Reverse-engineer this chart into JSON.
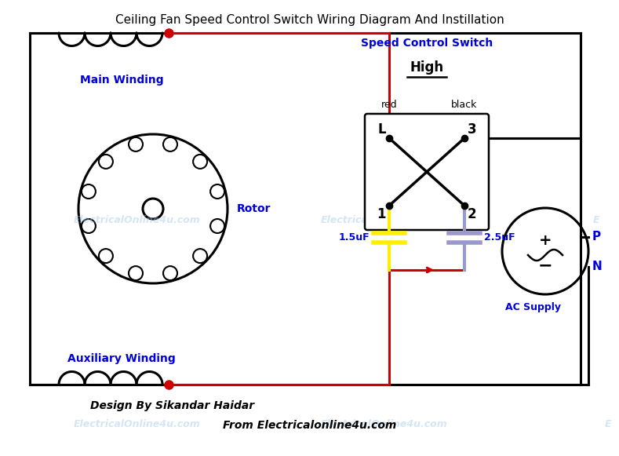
{
  "title": "Ceiling Fan Speed Control Switch Wiring Diagram And Instillation",
  "title_fontsize": 11,
  "bg_color": "#ffffff",
  "black": "#000000",
  "red": "#cc0000",
  "yellow": "#ffee00",
  "purple": "#9999cc",
  "blue_label": "#0000dd",
  "watermark_color": "#a0c8e8",
  "watermark_alpha": 0.45,
  "footer_text1": "Design By Sikandar Haidar",
  "footer_text2": "From Electricalonline4u.com",
  "labels": {
    "main_winding": "Main Winding",
    "rotor": "Rotor",
    "auxiliary_winding": "Auxiliary Winding",
    "speed_control": "Speed Control Switch",
    "high": "High",
    "red_label": "red",
    "black_label": "black",
    "L_label": "L",
    "three_label": "3",
    "one_label": "1",
    "two_label": "2",
    "cap1": "1.5uF",
    "cap2": "2.5uF",
    "P_label": "P",
    "N_label": "N",
    "ac_supply": "AC Supply"
  }
}
